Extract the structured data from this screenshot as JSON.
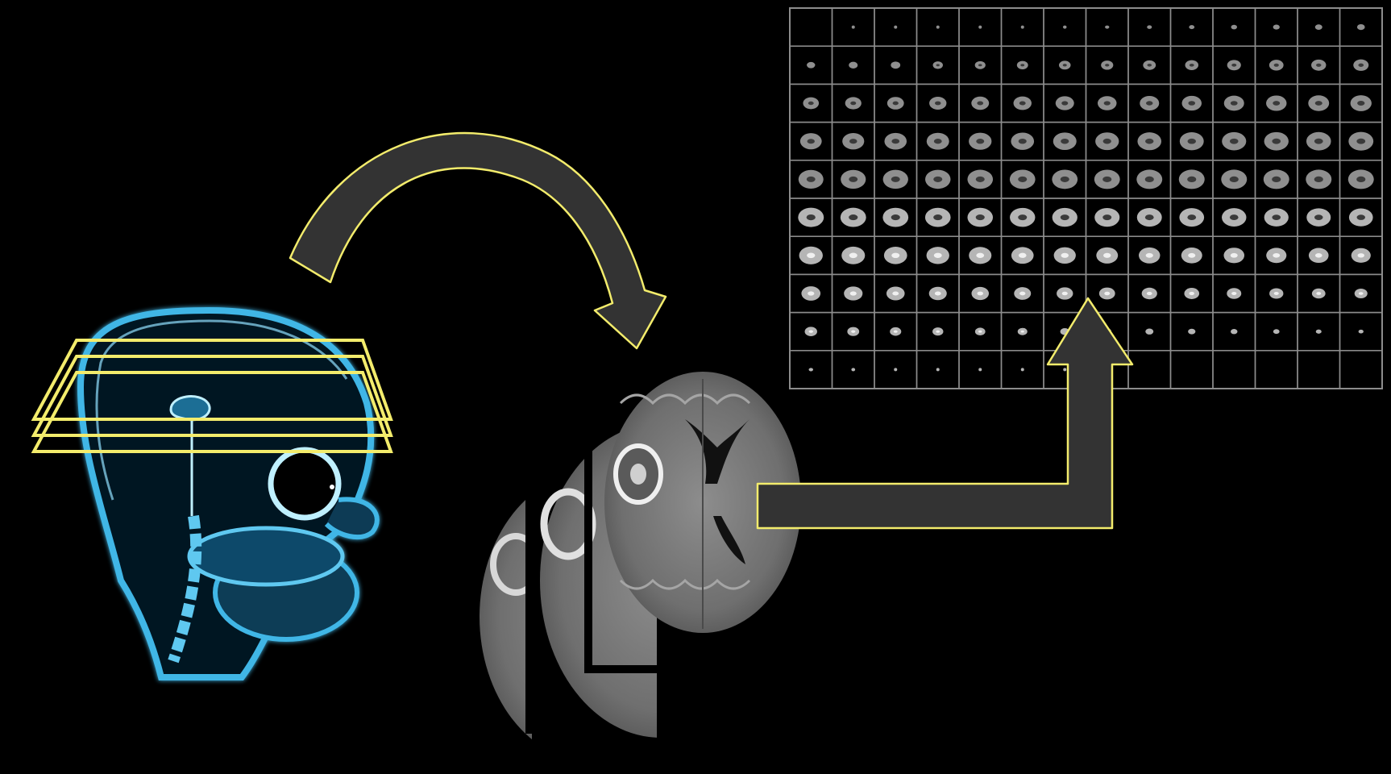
{
  "diagram": {
    "background": "#000000",
    "accent": "#f3ec6c",
    "arrow_fill": "#333333",
    "xray_color": "#3fb6e6",
    "mri_gray": "#8a8a8a",
    "steps": [
      {
        "id": "head-xray-with-slice-planes",
        "icon": "xray-head"
      },
      {
        "id": "mri-slice-stack",
        "icon": "brain-mri-slices"
      },
      {
        "id": "slice-montage-grid",
        "icon": "mri-montage"
      }
    ],
    "slice_planes": 3,
    "montage": {
      "rows": 10,
      "cols": 14,
      "grid_color": "#8c8c8c",
      "empty_cells": [
        [
          0,
          0
        ],
        [
          9,
          8
        ],
        [
          9,
          9
        ],
        [
          9,
          10
        ],
        [
          9,
          11
        ],
        [
          9,
          12
        ],
        [
          9,
          13
        ]
      ]
    },
    "arrows": [
      {
        "id": "curved-arrow",
        "from": "head-xray-with-slice-planes",
        "to": "mri-slice-stack"
      },
      {
        "id": "bent-arrow",
        "from": "mri-slice-stack",
        "to": "slice-montage-grid"
      }
    ]
  }
}
